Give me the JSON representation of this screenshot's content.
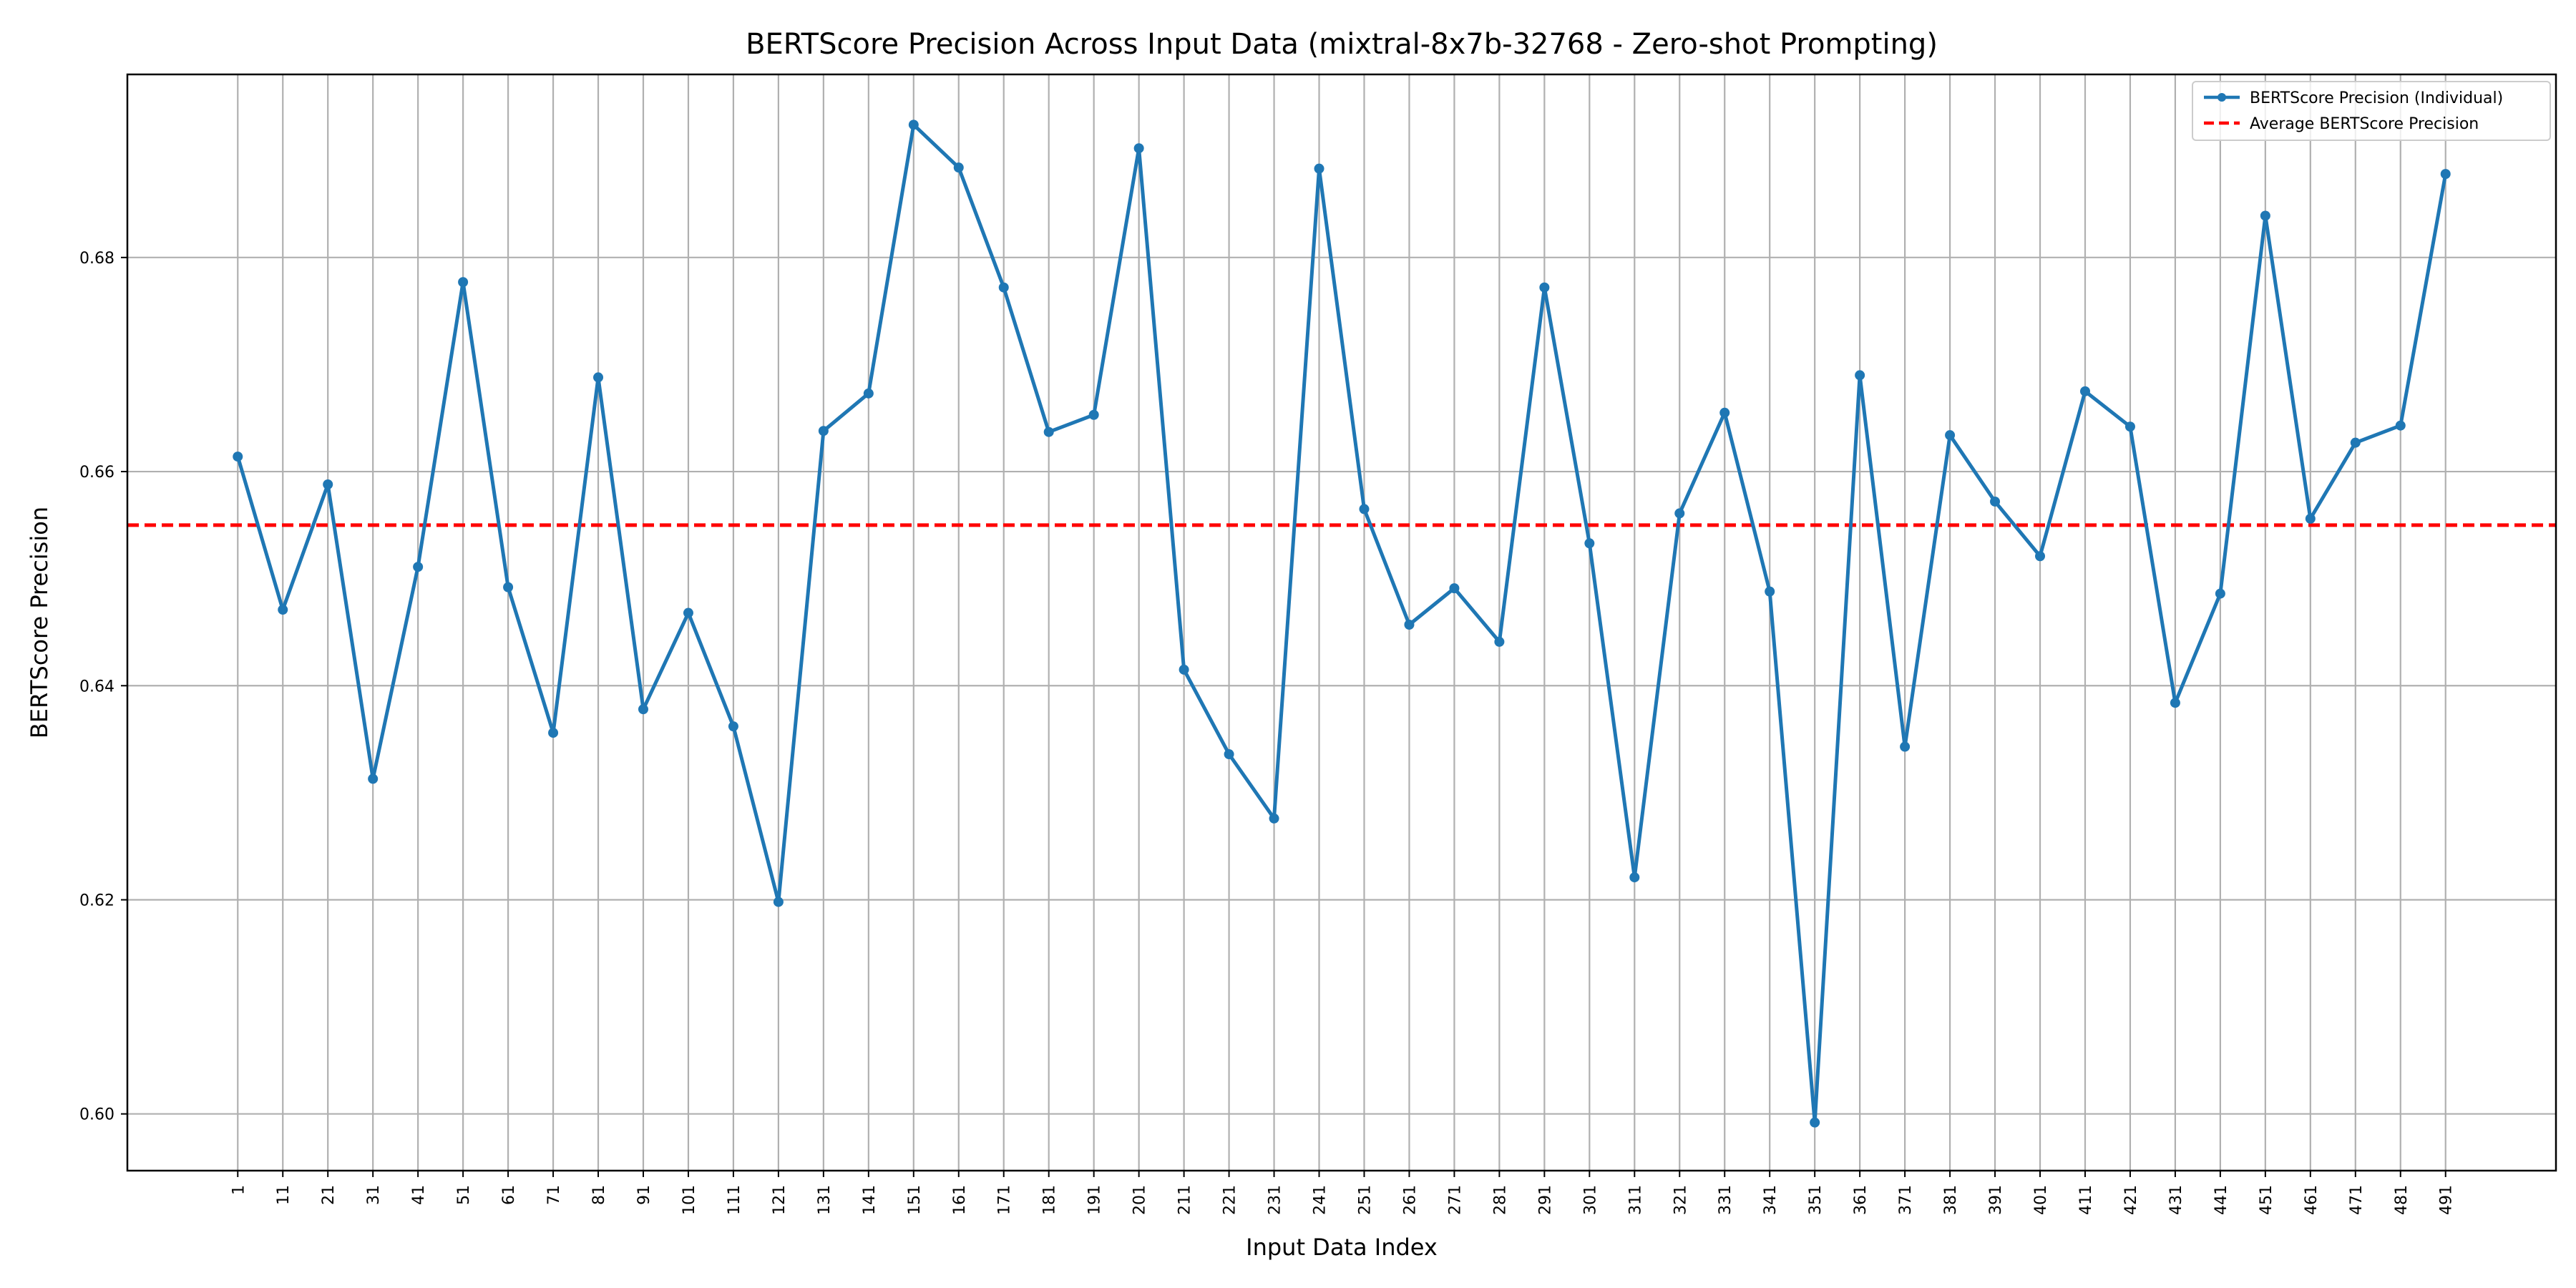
{
  "chart_data": {
    "type": "line",
    "title": "BERTScore Precision Across Input Data (mixtral-8x7b-32768 - Zero-shot Prompting)",
    "xlabel": "Input Data Index",
    "ylabel": "BERTScore Precision",
    "x": [
      1,
      11,
      21,
      31,
      41,
      51,
      61,
      71,
      81,
      91,
      101,
      111,
      121,
      131,
      141,
      151,
      161,
      171,
      181,
      191,
      201,
      211,
      221,
      231,
      241,
      251,
      261,
      271,
      281,
      291,
      301,
      311,
      321,
      331,
      341,
      351,
      361,
      371,
      381,
      391,
      401,
      411,
      421,
      431,
      441,
      451,
      461,
      471,
      481,
      491
    ],
    "xticks": [
      "1",
      "11",
      "21",
      "31",
      "41",
      "51",
      "61",
      "71",
      "81",
      "91",
      "101",
      "111",
      "121",
      "131",
      "141",
      "151",
      "161",
      "171",
      "181",
      "191",
      "201",
      "211",
      "221",
      "231",
      "241",
      "251",
      "261",
      "271",
      "281",
      "291",
      "301",
      "311",
      "321",
      "331",
      "341",
      "351",
      "361",
      "371",
      "381",
      "391",
      "401",
      "411",
      "421",
      "431",
      "441",
      "451",
      "461",
      "471",
      "481",
      "491"
    ],
    "yticks": [
      "0.60",
      "0.62",
      "0.64",
      "0.66",
      "0.68"
    ],
    "ytick_values": [
      0.6,
      0.62,
      0.64,
      0.66,
      0.68
    ],
    "xlim": [
      -23.5,
      515.5
    ],
    "ylim": [
      0.5947,
      0.6971
    ],
    "grid": true,
    "legend_position": "top-right",
    "series": [
      {
        "name": "BERTScore Precision (Individual)",
        "color": "#1f77b4",
        "style": "solid-with-markers",
        "values": [
          0.6614,
          0.6471,
          0.6588,
          0.6313,
          0.6511,
          0.6777,
          0.6492,
          0.6356,
          0.6688,
          0.6378,
          0.6468,
          0.6362,
          0.6198,
          0.6638,
          0.6673,
          0.6924,
          0.6884,
          0.6772,
          0.6637,
          0.6653,
          0.6902,
          0.6415,
          0.6336,
          0.6276,
          0.6883,
          0.6565,
          0.6457,
          0.6491,
          0.6441,
          0.6772,
          0.6533,
          0.6221,
          0.6561,
          0.6655,
          0.6488,
          0.5992,
          0.669,
          0.6343,
          0.6634,
          0.6572,
          0.6521,
          0.6675,
          0.6642,
          0.6384,
          0.6486,
          0.6839,
          0.6556,
          0.6627,
          0.6643,
          0.6878
        ]
      },
      {
        "name": "Average BERTScore Precision",
        "color": "#ff0000",
        "style": "dashed",
        "value": 0.655
      }
    ]
  }
}
